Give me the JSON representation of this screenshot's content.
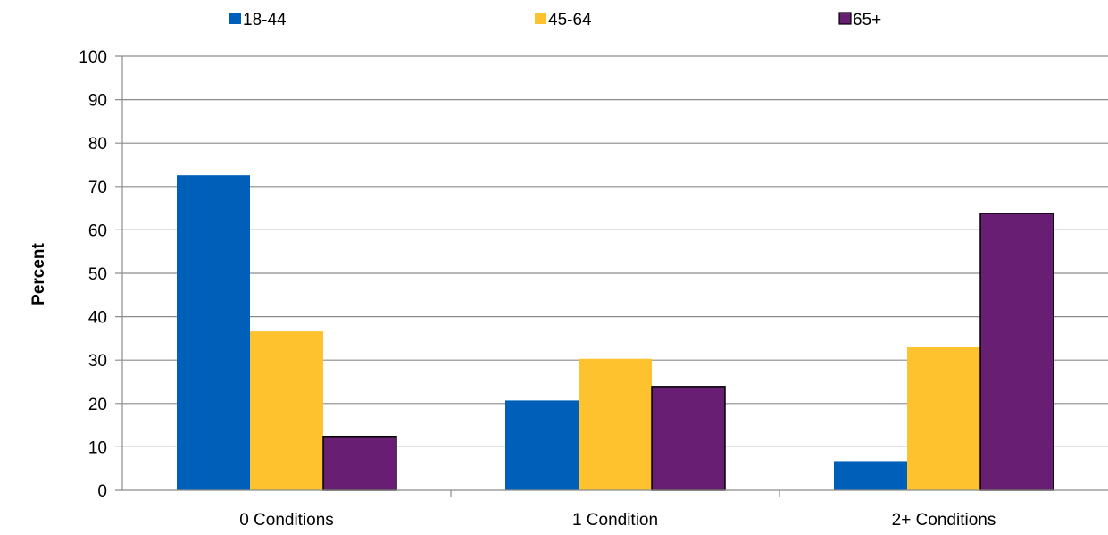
{
  "chart_data": {
    "type": "bar",
    "title": "",
    "xlabel": "",
    "ylabel": "Percent",
    "ylim": [
      0,
      100
    ],
    "yticks": [
      0,
      10,
      20,
      30,
      40,
      50,
      60,
      70,
      80,
      90,
      100
    ],
    "grid": true,
    "legend_position": "top",
    "categories": [
      "0 Conditions",
      "1 Condition",
      "2+ Conditions"
    ],
    "series": [
      {
        "name": "18-44",
        "color": "#0060B9",
        "values": [
          72.6,
          20.7,
          6.7
        ]
      },
      {
        "name": "45-64",
        "color": "#FEC22F",
        "values": [
          36.6,
          30.3,
          33.0
        ]
      },
      {
        "name": "65+",
        "color": "#681E72",
        "values": [
          12.4,
          23.9,
          63.8
        ]
      }
    ]
  }
}
